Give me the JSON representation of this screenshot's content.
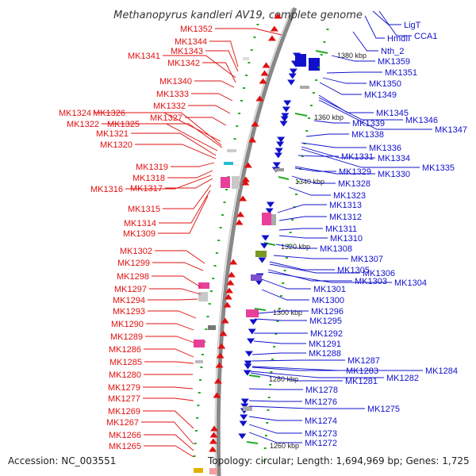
{
  "title": "Methanopyrus kandleri AV19, complete genome",
  "accession": "Accession: NC_003551",
  "summary": "Topology: circular; Length: 1,694,969 bp; Genes: 1,725",
  "colors": {
    "forward": "#e01010",
    "reverse": "#1010cc",
    "backbone": "#888888",
    "tick": "#22aa22"
  },
  "kbp_ticks": [
    "1380 kbp",
    "1360 kbp",
    "1340 kbp",
    "1320 kbp",
    "1300 kbp",
    "1280 kbp",
    "1260 kbp"
  ],
  "left_labels": [
    "MK1352",
    "MK1344",
    "MK1343",
    "MK1341",
    "MK1342",
    "MK1340",
    "MK1333",
    "MK1332",
    "MK1324",
    "MK1326",
    "MK1327",
    "MK1322",
    "MK1325",
    "MK1321",
    "MK1320",
    "MK1319",
    "MK1318",
    "MK1316",
    "MK1317",
    "MK1315",
    "MK1314",
    "MK1309",
    "MK1302",
    "MK1299",
    "MK1298",
    "MK1297",
    "MK1294",
    "MK1293",
    "MK1290",
    "MK1289",
    "MK1286",
    "MK1285",
    "MK1280",
    "MK1279",
    "MK1277",
    "MK1269",
    "MK1267",
    "MK1266",
    "MK1265"
  ],
  "right_labels": [
    "LigT",
    "HmdII",
    "CCA1",
    "Nth_2",
    "MK1359",
    "MK1351",
    "MK1350",
    "MK1349",
    "MK1345",
    "MK1346",
    "MK1347",
    "MK1339",
    "MK1338",
    "MK1336",
    "MK1334",
    "MK1331",
    "MK1335",
    "MK1329",
    "MK1330",
    "MK1328",
    "MK1323",
    "MK1313",
    "MK1312",
    "MK1311",
    "MK1310",
    "MK1308",
    "MK1307",
    "MK1305",
    "MK1306",
    "MK1303",
    "MK1304",
    "MK1301",
    "MK1300",
    "MK1296",
    "MK1295",
    "MK1292",
    "MK1291",
    "MK1288",
    "MK1287",
    "MK1283",
    "MK1284",
    "MK1281",
    "MK1282",
    "MK1278",
    "MK1276",
    "MK1275",
    "MK1274",
    "MK1273",
    "MK1272"
  ]
}
